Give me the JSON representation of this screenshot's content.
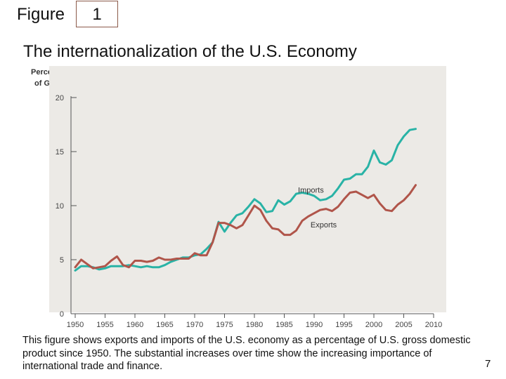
{
  "slide": {
    "figure_label": "Figure",
    "figure_number": "1",
    "title": "The internationalization of the U.S. Economy",
    "caption": "This figure shows exports and imports of the U.S. economy as a percentage of U.S. gross domestic product since 1950. The substantial increases over time show the increasing importance of international trade and finance.",
    "page_number": "7"
  },
  "colors": {
    "imports": "#29b3a6",
    "exports": "#b0554a",
    "plot_bg": "#eceae6",
    "axis": "#555555"
  },
  "chart_data": {
    "type": "line",
    "title": "",
    "ylabel_line1": "Percent",
    "ylabel_line2": "of GDP",
    "xlabel": "",
    "xlim": [
      1950,
      2010
    ],
    "ylim": [
      0,
      20
    ],
    "xticks": [
      1950,
      1955,
      1960,
      1965,
      1970,
      1975,
      1980,
      1985,
      1990,
      1995,
      2000,
      2005,
      2010
    ],
    "yticks": [
      0,
      5,
      10,
      15,
      20
    ],
    "grid": false,
    "legend": "inline labels",
    "series": [
      {
        "name": "Imports",
        "x": [
          1950,
          1951,
          1952,
          1953,
          1954,
          1955,
          1956,
          1957,
          1958,
          1959,
          1960,
          1961,
          1962,
          1963,
          1964,
          1965,
          1966,
          1967,
          1968,
          1969,
          1970,
          1971,
          1972,
          1973,
          1974,
          1975,
          1976,
          1977,
          1978,
          1979,
          1980,
          1981,
          1982,
          1983,
          1984,
          1985,
          1986,
          1987,
          1988,
          1989,
          1990,
          1991,
          1992,
          1993,
          1994,
          1995,
          1996,
          1997,
          1998,
          1999,
          2000,
          2001,
          2002,
          2003,
          2004,
          2005,
          2006,
          2007
        ],
        "values": [
          4.0,
          4.4,
          4.4,
          4.3,
          4.1,
          4.2,
          4.4,
          4.4,
          4.4,
          4.5,
          4.4,
          4.3,
          4.4,
          4.3,
          4.3,
          4.5,
          4.8,
          5.0,
          5.2,
          5.2,
          5.4,
          5.5,
          6.0,
          6.6,
          8.5,
          7.6,
          8.4,
          9.1,
          9.3,
          9.9,
          10.6,
          10.2,
          9.4,
          9.5,
          10.5,
          10.1,
          10.4,
          11.1,
          11.2,
          11.1,
          10.9,
          10.5,
          10.6,
          10.9,
          11.6,
          12.4,
          12.5,
          12.9,
          12.9,
          13.6,
          15.1,
          14.0,
          13.8,
          14.2,
          15.6,
          16.4,
          17.0,
          17.1
        ]
      },
      {
        "name": "Exports",
        "x": [
          1950,
          1951,
          1952,
          1953,
          1954,
          1955,
          1956,
          1957,
          1958,
          1959,
          1960,
          1961,
          1962,
          1963,
          1964,
          1965,
          1966,
          1967,
          1968,
          1969,
          1970,
          1971,
          1972,
          1973,
          1974,
          1975,
          1976,
          1977,
          1978,
          1979,
          1980,
          1981,
          1982,
          1983,
          1984,
          1985,
          1986,
          1987,
          1988,
          1989,
          1990,
          1991,
          1992,
          1993,
          1994,
          1995,
          1996,
          1997,
          1998,
          1999,
          2000,
          2001,
          2002,
          2003,
          2004,
          2005,
          2006,
          2007
        ],
        "values": [
          4.3,
          5.0,
          4.6,
          4.2,
          4.3,
          4.4,
          4.9,
          5.3,
          4.5,
          4.3,
          4.9,
          4.9,
          4.8,
          4.9,
          5.2,
          5.0,
          5.0,
          5.1,
          5.1,
          5.1,
          5.6,
          5.4,
          5.4,
          6.6,
          8.4,
          8.4,
          8.2,
          7.9,
          8.2,
          9.1,
          10.0,
          9.6,
          8.6,
          7.9,
          7.8,
          7.3,
          7.3,
          7.7,
          8.6,
          9.0,
          9.3,
          9.6,
          9.7,
          9.5,
          9.9,
          10.6,
          11.2,
          11.3,
          11.0,
          10.7,
          11.0,
          10.2,
          9.6,
          9.5,
          10.1,
          10.5,
          11.1,
          11.9
        ]
      }
    ]
  }
}
